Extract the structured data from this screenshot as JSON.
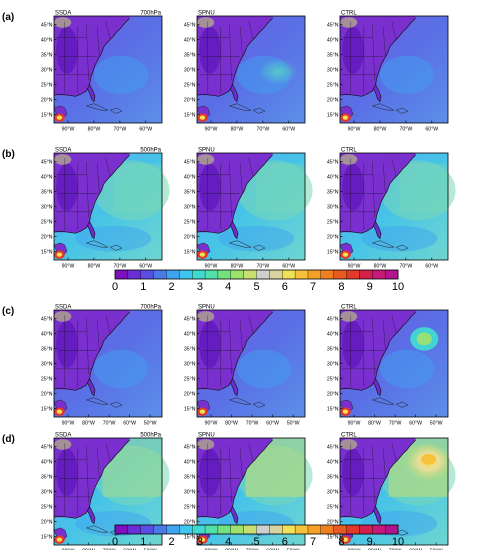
{
  "rows": [
    {
      "label": "(a)",
      "level": "700hPa",
      "cols": [
        "SSDA",
        "SPNU",
        "CTRL"
      ]
    },
    {
      "label": "(b)",
      "level": "500hPa",
      "cols": [
        "SSDA",
        "SPNU",
        "CTRL"
      ]
    },
    {
      "label": "(c)",
      "level": "700hPa",
      "cols": [
        "SSDA",
        "SPNU",
        "CTRL"
      ]
    },
    {
      "label": "(d)",
      "level": "500hPa",
      "cols": [
        "SSDA",
        "SPNU",
        "CTRL"
      ]
    }
  ],
  "lat_ticks": [
    "45°N",
    "40°N",
    "35°N",
    "30°N",
    "25°N",
    "20°N",
    "15°N"
  ],
  "lon_ticks_short": [
    "90°W",
    "80°W",
    "70°W",
    "60°W"
  ],
  "lon_ticks_long": [
    "90°W",
    "80°W",
    "70°W",
    "60°W",
    "50°W"
  ],
  "colorbar": {
    "labels": [
      "0",
      "1",
      "2",
      "3",
      "4",
      "5",
      "6",
      "7",
      "8",
      "9",
      "10"
    ],
    "colors": [
      "#7d0fbf",
      "#6a2fd6",
      "#5b4fe3",
      "#4a7ae8",
      "#3fa3ef",
      "#3ec6ee",
      "#41d9d0",
      "#53dfa8",
      "#74e27f",
      "#9fe16d",
      "#c8df70",
      "#cfcfcf",
      "#d8d4a0",
      "#f0e15a",
      "#f6c23a",
      "#f5a128",
      "#f07f22",
      "#e85b20",
      "#e13a2a",
      "#d31f4a",
      "#c71a78",
      "#b3158f"
    ]
  },
  "colors": {
    "ocean_base": "#48bfe6",
    "land_low": "#7a2fcf",
    "land_high": "#5d16b8",
    "moist": "#c8df70",
    "tropical": "#7ad9b4",
    "hot": "#e13a2a",
    "ctrl_high": "#f0e15a"
  }
}
